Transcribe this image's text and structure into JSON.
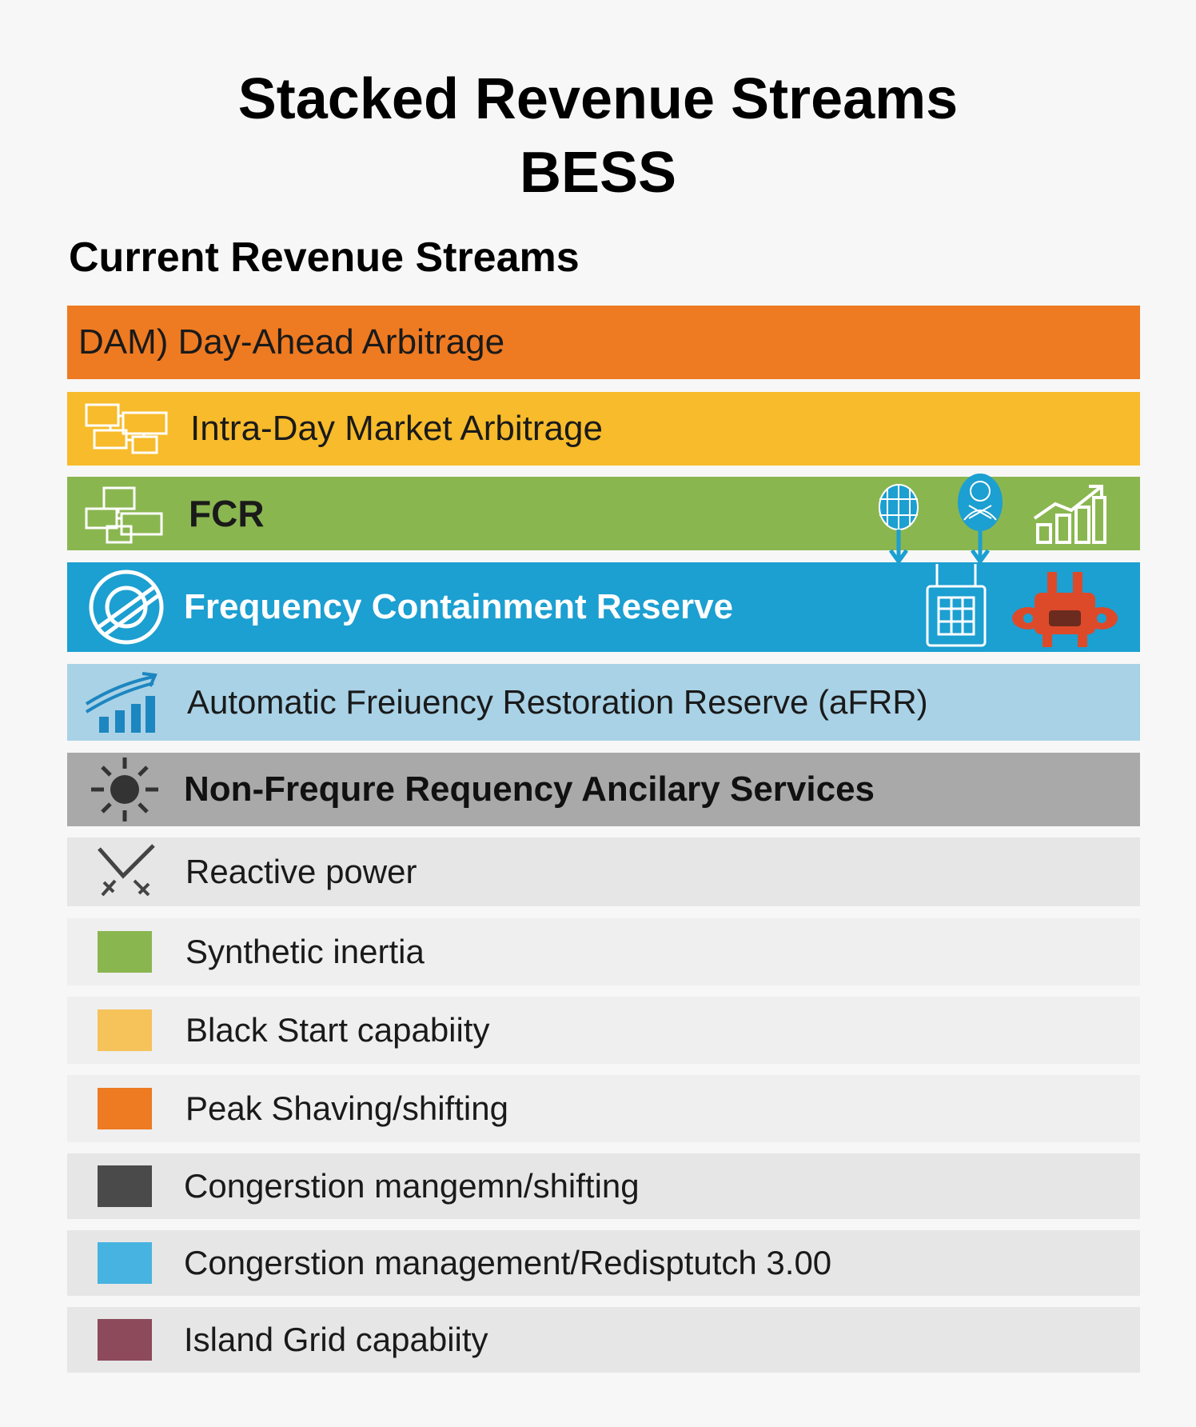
{
  "title": {
    "line1": "Stacked Revenue Streams",
    "line2": "BESS"
  },
  "section_heading": "Current Revenue Streams",
  "colors": {
    "orange": "#ee7a22",
    "yellow": "#f7bb2b",
    "green": "#8ab650",
    "blue": "#1c9fd1",
    "light_blue": "#a9d2e6",
    "gray": "#a9a9a9",
    "row_gray": "#e6e6e6",
    "row_light": "#efefef"
  },
  "bands": [
    {
      "label": "DAM) Day-Ahead Arbitrage",
      "color": "#ee7a22"
    },
    {
      "label": "Intra-Day Market Arbitrage",
      "color": "#f7bb2b",
      "icon": "network-boxes-icon"
    },
    {
      "label": "FCR",
      "color": "#8ab650",
      "icon": "network-boxes-icon",
      "extra_icons": [
        "globe-icon",
        "person-icon",
        "bar-chart-up-icon"
      ]
    },
    {
      "label": "Frequency Containment Reserve",
      "color": "#1c9fd1",
      "icon": "target-icon",
      "extra_icons": [
        "control-panel-icon",
        "robot-icon"
      ]
    },
    {
      "label": "Automatic Freiuency Restoration Reserve (aFRR)",
      "color": "#a9d2e6",
      "icon": "growth-chart-icon"
    },
    {
      "label": "Non-Frequre Requency Ancilary Services",
      "color": "#a9a9a9",
      "icon": "sun-icon"
    }
  ],
  "list_items": [
    {
      "label": "Reactive power",
      "icon": "check-arrows-icon"
    },
    {
      "label": "Synthetic inertia",
      "swatch": "#8ab650"
    },
    {
      "label": "Black Start capabiity",
      "swatch": "#f6c25a"
    },
    {
      "label": "Peak Shaving/shifting",
      "swatch": "#ee7a22"
    },
    {
      "label": "Congerstion mangemn/shifting",
      "swatch": "#4a4a4a"
    },
    {
      "label": "Congerstion management/Redisptutch 3.00",
      "swatch": "#47b3e0"
    },
    {
      "label": "Island Grid capabiity",
      "swatch": "#8c4a5a"
    }
  ]
}
